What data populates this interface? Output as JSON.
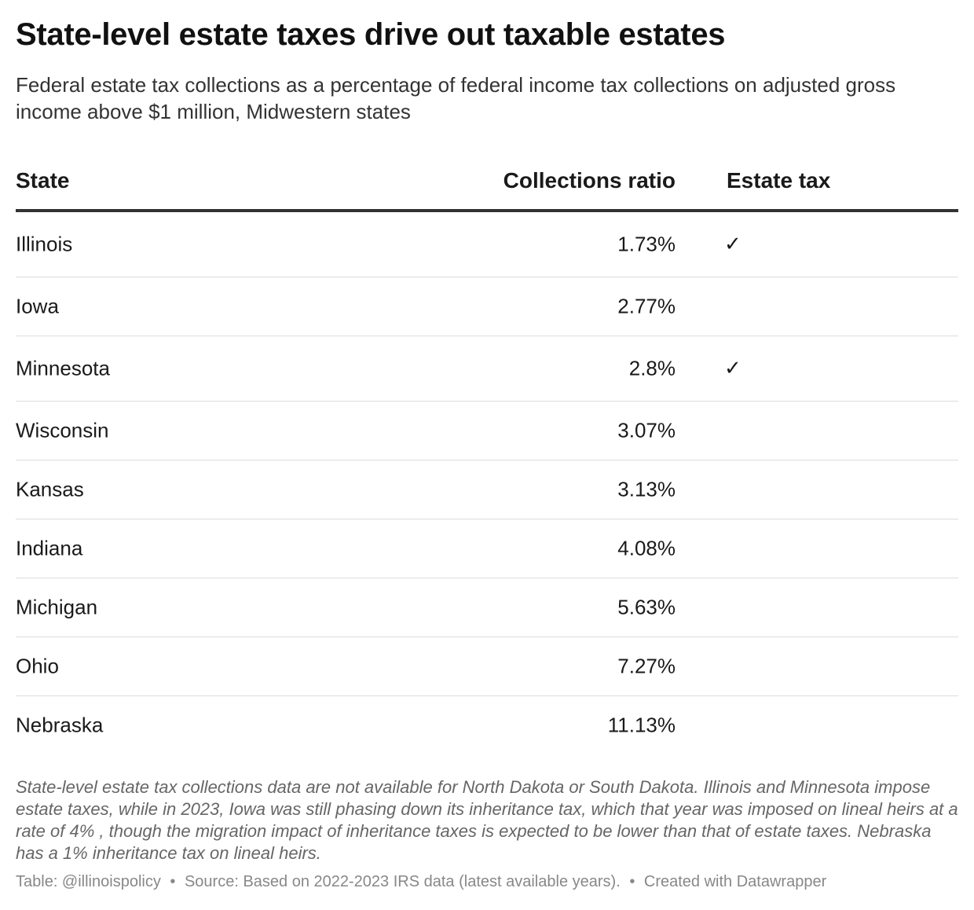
{
  "chart_data": {
    "type": "table",
    "title": "State-level estate taxes drive out taxable estates",
    "subtitle": "Federal estate tax collections as a percentage of federal income tax collections on adjusted gross income above $1 million, Midwestern states",
    "columns": [
      "State",
      "Collections ratio",
      "Estate tax"
    ],
    "rows": [
      {
        "state": "Illinois",
        "ratio": "1.73%",
        "estate_tax": "✓"
      },
      {
        "state": "Iowa",
        "ratio": "2.77%",
        "estate_tax": ""
      },
      {
        "state": "Minnesota",
        "ratio": "2.8%",
        "estate_tax": "✓"
      },
      {
        "state": "Wisconsin",
        "ratio": "3.07%",
        "estate_tax": ""
      },
      {
        "state": "Kansas",
        "ratio": "3.13%",
        "estate_tax": ""
      },
      {
        "state": "Indiana",
        "ratio": "4.08%",
        "estate_tax": ""
      },
      {
        "state": "Michigan",
        "ratio": "5.63%",
        "estate_tax": ""
      },
      {
        "state": "Ohio",
        "ratio": "7.27%",
        "estate_tax": ""
      },
      {
        "state": "Nebraska",
        "ratio": "11.13%",
        "estate_tax": ""
      }
    ]
  },
  "notes": "State-level estate tax collections data are not available for North Dakota or South Dakota. Illinois and Minnesota impose estate taxes, while in 2023, Iowa was still phasing down its inheritance tax, which that year was imposed on lineal heirs at a rate of 4% , though the migration impact of inheritance taxes is expected to be lower than that of estate taxes. Nebraska has a 1% inheritance tax on lineal heirs.",
  "footer": {
    "table_credit": "Table: @illinoispolicy",
    "source": "Source: Based on 2022-2023 IRS data (latest available years).",
    "created_with": "Created with Datawrapper",
    "separator": "•"
  },
  "colors": {
    "text": "#1a1a1a",
    "subtitle": "#333333",
    "header_rule": "#333333",
    "row_rule": "#dddddd",
    "notes": "#666666",
    "footer": "#888888"
  }
}
